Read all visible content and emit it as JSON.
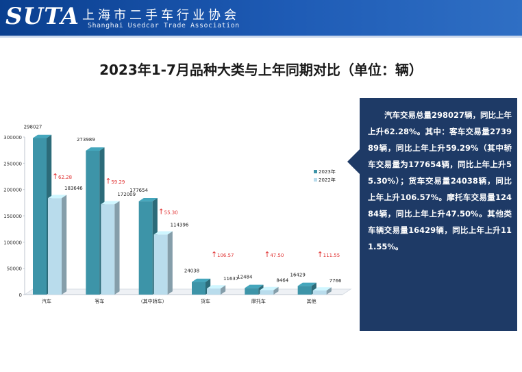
{
  "header": {
    "logo": "SUTA",
    "org_name": "上海市二手车行业协会",
    "org_name_en": "Shanghai Usedcar Trade Association"
  },
  "title": "2023年1-7月品种大类与上年同期对比（单位：辆）",
  "chart_data": {
    "type": "bar",
    "title": "",
    "categories": [
      "汽车",
      "客车",
      "（其中轿车）",
      "货车",
      "摩托车",
      "其他"
    ],
    "series": [
      {
        "name": "2023年",
        "values": [
          298027,
          273989,
          177654,
          24038,
          12484,
          16429
        ],
        "labels": [
          "298027",
          "273989",
          "177654",
          "24038",
          "12484",
          "16429"
        ],
        "color": "#3d94a8"
      },
      {
        "name": "2022年",
        "values": [
          183646,
          172009,
          114396,
          11637,
          8464,
          7766
        ],
        "labels": [
          "183646",
          "172009",
          "114396",
          "11637",
          "8464",
          "7766"
        ],
        "color": "#b9dcec"
      }
    ],
    "growth": [
      "62.28",
      "59.29",
      "55.30",
      "106.57",
      "47.50",
      "111.55"
    ],
    "growth_marker": "↑",
    "ylim": [
      0,
      300000
    ],
    "y_ticks": [
      "0",
      "50000",
      "100000",
      "150000",
      "200000",
      "250000",
      "300000"
    ],
    "grid": false,
    "legend": "right",
    "style": "3d-columns"
  },
  "callout": {
    "text": "汽车交易总量298027辆，同比上年上升62.28%。其中：客车交易量273989辆，同比上年上升59.29%（其中轿车交易量为177654辆，同比上年上升55.30%）；货车交易量24038辆，同比上年上升106.57%。摩托车交易量12484辆，同比上年上升47.50%。其他类车辆交易量16429辆，同比上年上升111.55%。"
  }
}
